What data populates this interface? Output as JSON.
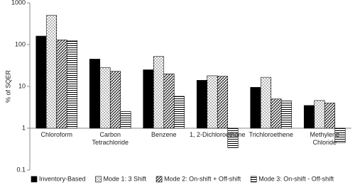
{
  "chart_data": {
    "type": "bar",
    "y_label": "% of SQER",
    "log_scale": true,
    "categories": [
      "Chloroform",
      "Carbon\nTetrachloride",
      "Benzene",
      "1, 2-Dichloroethane",
      "Trichloroethene",
      "Methylene\nChloride"
    ],
    "series": [
      {
        "name": "Inventory-Based",
        "color": "#000000",
        "pattern": "solid",
        "values": [
          160,
          45,
          25,
          14,
          9.5,
          3.5
        ]
      },
      {
        "name": "Mode 1: 3 Shift",
        "color": "#000000",
        "pattern": "dots",
        "values": [
          500,
          28,
          52,
          18,
          16.5,
          4.6
        ]
      },
      {
        "name": "Mode 2: On-shift + Off-shift",
        "color": "#000000",
        "pattern": "crosshatch",
        "values": [
          130,
          23,
          20,
          17.5,
          5,
          4
        ]
      },
      {
        "name": "Mode 3: On-shift - Off-shift",
        "color": "#000000",
        "pattern": "hlines",
        "values": [
          125,
          2.5,
          5.8,
          0.34,
          4.5,
          0.45
        ]
      }
    ],
    "ylim": [
      0.1,
      1000
    ],
    "yticks": [
      0.1,
      1,
      10,
      100,
      1000
    ],
    "legend": "bottom"
  }
}
